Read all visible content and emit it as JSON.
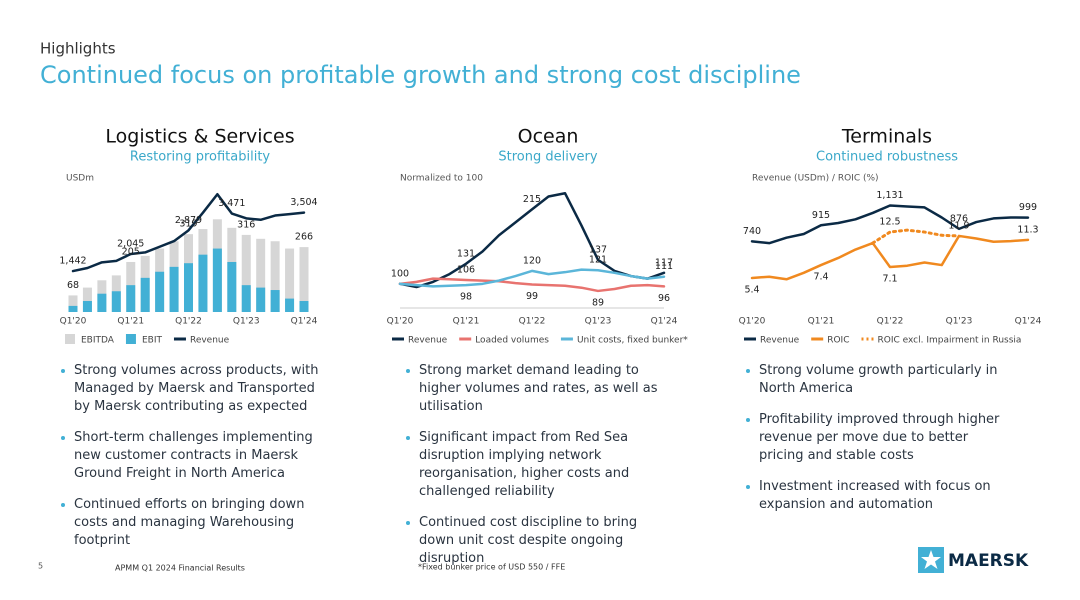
{
  "header": {
    "kicker": "Highlights",
    "title": "Continued focus on profitable growth and strong cost discipline"
  },
  "panels": [
    {
      "title": "Logistics & Services",
      "subtitle": "Restoring profitability",
      "axis_note": "USDm",
      "bullets": [
        "Strong volumes across products, with Managed by Maersk and Transported by Maersk contributing as expected",
        "Short-term challenges implementing new customer contracts in Maersk Ground Freight in North America",
        "Continued efforts on bringing down costs and managing Warehousing footprint"
      ]
    },
    {
      "title": "Ocean",
      "subtitle": "Strong delivery",
      "axis_note": "Normalized to 100",
      "bullets": [
        "Strong market demand leading to higher volumes and rates, as well as utilisation",
        "Significant impact from Red Sea disruption implying network reorganisation, higher costs and challenged reliability",
        "Continued cost discipline to bring down unit cost despite ongoing disruption"
      ]
    },
    {
      "title": "Terminals",
      "subtitle": "Continued robustness",
      "axis_note": "Revenue (USDm) / ROIC (%)",
      "bullets": [
        "Strong volume growth particularly in North America",
        "Profitability improved through higher revenue per move due to better pricing and stable costs",
        "Investment increased with focus on expansion and automation"
      ]
    }
  ],
  "chart_data": [
    {
      "type": "combo",
      "bar_mode": "overlap",
      "categories": [
        "Q1'20",
        null,
        null,
        null,
        "Q1'21",
        null,
        null,
        null,
        "Q1'22",
        null,
        null,
        null,
        "Q1'23",
        null,
        null,
        null,
        "Q1'24"
      ],
      "ylim": [
        0,
        500
      ],
      "y2lim": [
        0,
        4300
      ],
      "series": [
        {
          "name": "EBITDA",
          "type": "bar",
          "color": "#d6d6d6",
          "values": [
            68,
            100,
            130,
            150,
            205,
            230,
            260,
            290,
            319,
            340,
            380,
            345,
            316,
            300,
            290,
            260,
            266
          ],
          "value_labels": [
            "68",
            null,
            null,
            null,
            "205",
            null,
            null,
            null,
            "319",
            null,
            null,
            null,
            "316",
            null,
            null,
            null,
            "266"
          ]
        },
        {
          "name": "EBIT",
          "type": "bar",
          "color": "#42b0d5",
          "values": [
            25,
            45,
            75,
            85,
            110,
            140,
            165,
            185,
            200,
            235,
            260,
            205,
            110,
            100,
            90,
            55,
            45
          ]
        },
        {
          "name": "Revenue",
          "type": "line",
          "axis": "y2",
          "color": "#0b2a45",
          "values": [
            1442,
            1550,
            1750,
            1800,
            2045,
            2100,
            2300,
            2500,
            2879,
            3500,
            4150,
            3471,
            3300,
            3250,
            3400,
            3450,
            3504
          ],
          "value_labels": [
            "1,442",
            null,
            null,
            null,
            "2,045",
            null,
            null,
            null,
            "2,879",
            null,
            null,
            "3,471",
            null,
            null,
            null,
            null,
            "3,504"
          ]
        }
      ]
    },
    {
      "type": "line",
      "categories": [
        "Q1'20",
        null,
        null,
        null,
        "Q1'21",
        null,
        null,
        null,
        "Q1'22",
        null,
        null,
        null,
        "Q1'23",
        null,
        null,
        null,
        "Q1'24"
      ],
      "ylim": [
        75,
        245
      ],
      "series": [
        {
          "name": "Revenue",
          "color": "#0b2a45",
          "values": [
            100,
            95,
            103,
            115,
            131,
            150,
            175,
            195,
            215,
            235,
            240,
            190,
            137,
            120,
            112,
            108,
            117
          ],
          "value_labels": [
            "100",
            null,
            null,
            null,
            "131",
            null,
            null,
            null,
            "215",
            null,
            null,
            null,
            "137",
            null,
            null,
            null,
            "117"
          ]
        },
        {
          "name": "Loaded volumes",
          "color": "#e8736f",
          "values": [
            100,
            103,
            108,
            107,
            106,
            105,
            104,
            101,
            99,
            98,
            97,
            94,
            89,
            92,
            97,
            98,
            96
          ],
          "value_labels": [
            null,
            null,
            null,
            null,
            "106",
            null,
            null,
            null,
            "99",
            null,
            null,
            null,
            "89",
            null,
            null,
            null,
            "96"
          ]
        },
        {
          "name": "Unit costs, fixed bunker*",
          "color": "#5bb6d9",
          "values": [
            100,
            98,
            96,
            97,
            98,
            100,
            105,
            112,
            120,
            115,
            118,
            122,
            121,
            117,
            112,
            108,
            111
          ],
          "value_labels": [
            null,
            null,
            null,
            null,
            "98",
            null,
            null,
            null,
            "120",
            null,
            null,
            null,
            "121",
            null,
            null,
            null,
            "111"
          ]
        }
      ]
    },
    {
      "type": "combo",
      "categories": [
        "Q1'20",
        null,
        null,
        null,
        "Q1'21",
        null,
        null,
        null,
        "Q1'22",
        null,
        null,
        null,
        "Q1'23",
        null,
        null,
        null,
        "Q1'24"
      ],
      "ylim": [
        100,
        1300
      ],
      "y2lim": [
        2,
        19
      ],
      "series": [
        {
          "name": "Revenue",
          "type": "line",
          "color": "#0b2a45",
          "values": [
            740,
            720,
            780,
            820,
            915,
            940,
            980,
            1050,
            1131,
            1120,
            1110,
            1000,
            876,
            950,
            990,
            1000,
            999
          ],
          "value_labels": [
            "740",
            null,
            null,
            null,
            "915",
            null,
            null,
            null,
            "1,131",
            null,
            null,
            null,
            "876",
            null,
            null,
            null,
            "999"
          ]
        },
        {
          "name": "ROIC",
          "type": "line",
          "axis": "y2",
          "color": "#f0891f",
          "values": [
            5.4,
            5.6,
            5.2,
            6.2,
            7.4,
            8.5,
            9.8,
            10.8,
            7.1,
            7.3,
            7.8,
            7.4,
            11.9,
            11.5,
            11.0,
            11.1,
            11.3
          ],
          "value_labels": [
            "5.4",
            null,
            null,
            null,
            "7.4",
            null,
            null,
            null,
            "7.1",
            null,
            null,
            null,
            "11.9",
            null,
            null,
            null,
            "11.3"
          ]
        },
        {
          "name": "ROIC excl. Impairment in Russia",
          "type": "line",
          "style": "dotted",
          "axis": "y2",
          "color": "#f0891f",
          "values": [
            null,
            null,
            null,
            null,
            null,
            null,
            null,
            10.8,
            12.5,
            12.8,
            12.5,
            12.0,
            11.9,
            null,
            null,
            null,
            null
          ],
          "value_labels": [
            null,
            null,
            null,
            null,
            null,
            null,
            null,
            null,
            "12.5",
            null,
            null,
            null,
            null,
            null,
            null,
            null,
            null
          ]
        }
      ]
    }
  ],
  "footer": {
    "page": "5",
    "source": "APMM Q1 2024 Financial Results",
    "footnote": "*Fixed bunker price of USD 550 / FFE",
    "logo": "MAERSK"
  }
}
